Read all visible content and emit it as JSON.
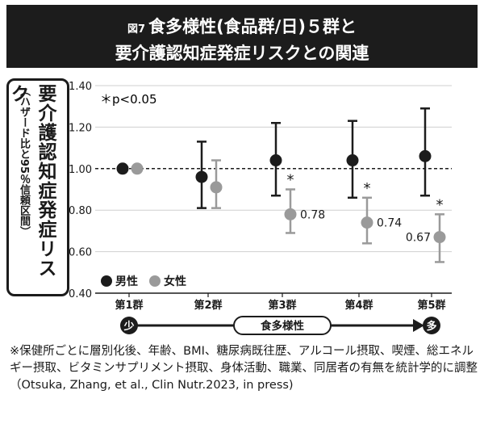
{
  "title": {
    "figure_label": "図7",
    "line1": "食多様性(食品群/日)５群と",
    "line2": "要介護認知症発症リスクとの関連"
  },
  "y_axis_label": {
    "main": "要介護認知症発症リスク",
    "sub": "（ハザード比と95％信頼区間）"
  },
  "annotation": "＊p<0.05",
  "legend": [
    {
      "label": "男性",
      "color": "#1c1c1c"
    },
    {
      "label": "女性",
      "color": "#9a9a9a"
    }
  ],
  "axis_bottom": {
    "low_label": "少",
    "high_label": "多",
    "arrow_label": "食多様性"
  },
  "footnote": "※保健所ごとに層別化後、年齢、BMI、糖尿病既往歴、アルコール摂取、喫煙、総エネルギー摂取、ビタミンサプリメント摂取、身体活動、職業、同居者の有無を統計学的に調整（Otsuka, Zhang, et al., Clin Nutr.2023, in press)",
  "chart_data": {
    "type": "scatter",
    "categories": [
      "第1群",
      "第2群",
      "第3群",
      "第4群",
      "第5群"
    ],
    "ylim": [
      0.4,
      1.4
    ],
    "yticks": [
      "0.40",
      "0.60",
      "0.80",
      "1.00",
      "1.20",
      "1.40"
    ],
    "reference_line": 1.0,
    "grid": "horizontal",
    "series": [
      {
        "name": "男性",
        "color": "#1c1c1c",
        "values": [
          1.0,
          0.96,
          1.04,
          1.04,
          1.06
        ],
        "lower": [
          1.0,
          0.81,
          0.87,
          0.86,
          0.87
        ],
        "upper": [
          1.0,
          1.13,
          1.22,
          1.23,
          1.29
        ],
        "significant": [
          false,
          false,
          false,
          false,
          false
        ],
        "labels": [
          "",
          "",
          "",
          "",
          ""
        ]
      },
      {
        "name": "女性",
        "color": "#9a9a9a",
        "values": [
          1.0,
          0.91,
          0.78,
          0.74,
          0.67
        ],
        "lower": [
          1.0,
          0.81,
          0.69,
          0.64,
          0.55
        ],
        "upper": [
          1.0,
          1.04,
          0.9,
          0.86,
          0.78
        ],
        "significant": [
          false,
          false,
          true,
          true,
          true
        ],
        "labels": [
          "",
          "",
          "0.78",
          "0.74",
          "0.67"
        ]
      }
    ]
  }
}
